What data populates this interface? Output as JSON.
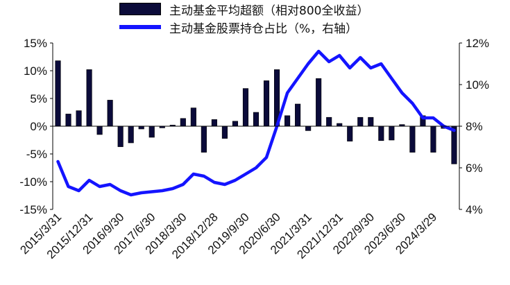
{
  "legend": {
    "bar_label": "主动基金平均超额（相对800全收益）",
    "line_label": "主动基金股票持仓占比（%，右轴）"
  },
  "colors": {
    "bar": "#0b0b3a",
    "line": "#1414ff",
    "axis": "#000000"
  },
  "chart_data": {
    "type": "bar",
    "x_tick_labels": [
      "2015/3/31",
      "2015/12/31",
      "2016/9/30",
      "2017/6/30",
      "2018/3/30",
      "2018/12/28",
      "2019/9/30",
      "2020/6/30",
      "2021/3/31",
      "2021/12/31",
      "2022/9/30",
      "2023/6/30",
      "2024/3/29"
    ],
    "y_left": {
      "ylim": [
        -15,
        15
      ],
      "ticks": [
        "-15%",
        "-10%",
        "-5%",
        "0%",
        "5%",
        "10%",
        "15%"
      ],
      "tick_values": [
        -15,
        -10,
        -5,
        0,
        5,
        10,
        15
      ]
    },
    "y_right": {
      "ylim": [
        4,
        12
      ],
      "ticks": [
        "4%",
        "6%",
        "8%",
        "10%",
        "12%"
      ],
      "tick_values": [
        4,
        6,
        8,
        10,
        12
      ]
    },
    "series": [
      {
        "name": "主动基金平均超额（相对800全收益）",
        "type": "bar",
        "axis": "left",
        "values": [
          11.8,
          2.2,
          2.8,
          10.2,
          -1.5,
          4.7,
          -3.7,
          -3.0,
          -0.5,
          -2.0,
          -0.3,
          0.2,
          1.4,
          3.3,
          -4.7,
          1.2,
          -2.2,
          0.9,
          6.8,
          2.5,
          8.2,
          10.2,
          1.9,
          4.0,
          -0.8,
          8.6,
          1.6,
          0.5,
          -2.7,
          1.6,
          1.6,
          -2.6,
          -2.5,
          0.3,
          -4.7,
          1.9,
          -4.7,
          -0.4,
          -6.8
        ]
      },
      {
        "name": "主动基金股票持仓占比（%，右轴）",
        "type": "line",
        "axis": "right",
        "values": [
          6.3,
          5.1,
          4.9,
          5.4,
          5.1,
          5.2,
          4.9,
          4.7,
          4.8,
          4.85,
          4.9,
          5.0,
          5.2,
          5.7,
          5.6,
          5.3,
          5.2,
          5.4,
          5.7,
          6.0,
          6.5,
          8.0,
          9.6,
          10.3,
          11.0,
          11.6,
          11.1,
          11.4,
          10.8,
          11.3,
          10.8,
          11.0,
          10.3,
          9.6,
          9.1,
          8.4,
          8.4,
          8.0,
          7.8
        ]
      }
    ]
  }
}
